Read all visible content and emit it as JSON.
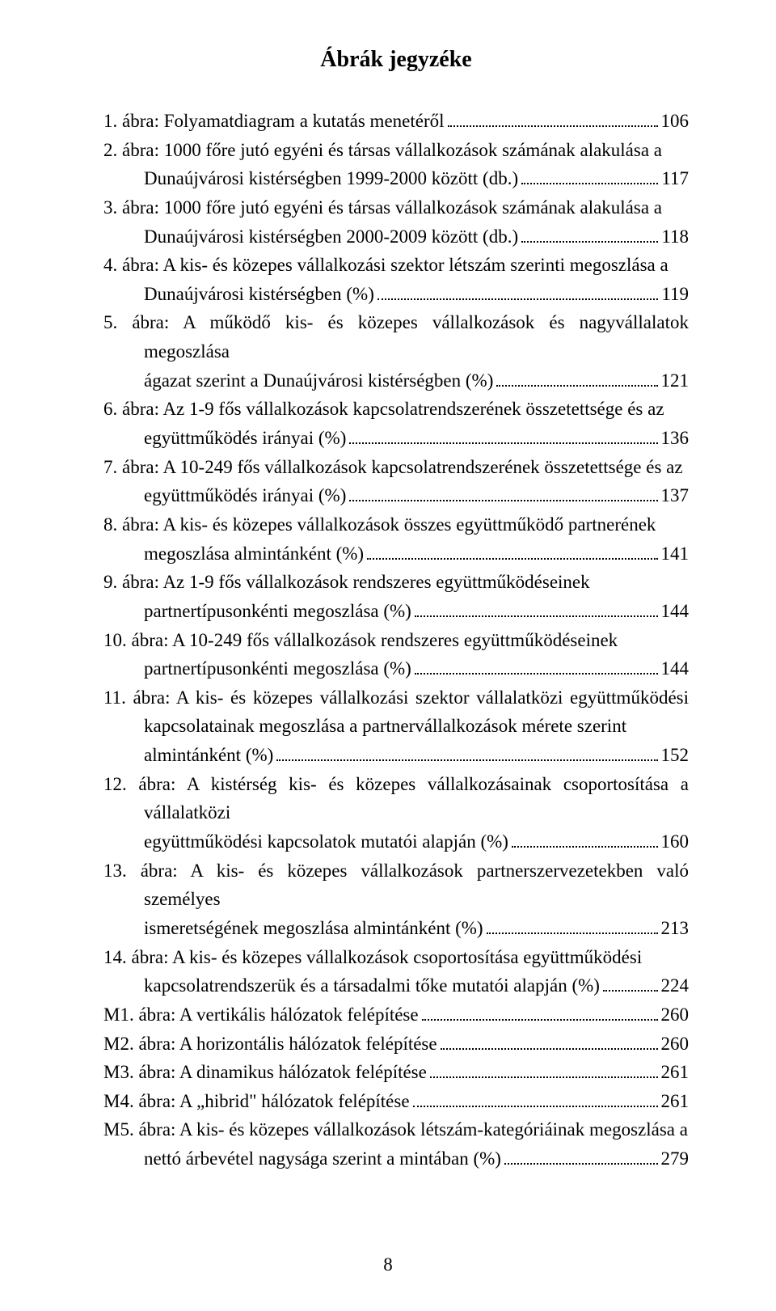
{
  "title": "Ábrák jegyzéke",
  "page_number": "8",
  "entries": [
    {
      "pre": "",
      "tail": "1. ábra: Folyamatdiagram a kutatás menetéről",
      "page": "106"
    },
    {
      "pre": "2. ábra: 1000 főre jutó egyéni és társas vállalkozások számának alakulása a",
      "tail": "Dunaújvárosi kistérségben 1999-2000 között (db.)",
      "page": "117"
    },
    {
      "pre": "3. ábra: 1000 főre jutó egyéni és társas vállalkozások számának alakulása a",
      "tail": "Dunaújvárosi kistérségben 2000-2009 között (db.)",
      "page": "118"
    },
    {
      "pre": "4. ábra: A kis- és közepes vállalkozási szektor létszám szerinti megoszlása a",
      "tail": "Dunaújvárosi kistérségben (%)",
      "page": "119"
    },
    {
      "pre": "5. ábra: A működő kis- és közepes vállalkozások és nagyvállalatok megoszlása",
      "tail": "ágazat szerint a Dunaújvárosi kistérségben (%)",
      "page": "121"
    },
    {
      "pre": "6. ábra: Az 1-9 fős vállalkozások kapcsolatrendszerének összetettsége és az",
      "tail": "együttműködés irányai (%)",
      "page": "136"
    },
    {
      "pre": "7. ábra: A 10-249 fős vállalkozások kapcsolatrendszerének összetettsége és az",
      "tail": "együttműködés irányai (%)",
      "page": "137"
    },
    {
      "pre": "8. ábra: A kis- és közepes vállalkozások összes együttműködő partnerének",
      "tail": "megoszlása almintánként (%)",
      "page": "141"
    },
    {
      "pre": "9. ábra: Az 1-9 fős vállalkozások rendszeres együttműködéseinek",
      "tail": "partnertípusonkénti megoszlása (%)",
      "page": "144"
    },
    {
      "pre": "10. ábra: A 10-249 fős vállalkozások rendszeres együttműködéseinek",
      "tail": "partnertípusonkénti megoszlása (%)",
      "page": "144"
    },
    {
      "pre": "11. ábra: A kis- és közepes vállalkozási szektor vállalatközi együttműködési kapcsolatainak megoszlása a partnervállalkozások mérete szerint",
      "tail": "almintánként (%)",
      "page": "152"
    },
    {
      "pre": "12. ábra: A kistérség kis- és közepes vállalkozásainak csoportosítása a vállalatközi",
      "tail": "együttműködési kapcsolatok mutatói alapján (%)",
      "page": "160"
    },
    {
      "pre": "13. ábra: A kis- és közepes vállalkozások partnerszervezetekben való személyes",
      "tail": "ismeretségének megoszlása almintánként (%)",
      "page": "213"
    },
    {
      "pre": "14. ábra: A kis- és közepes vállalkozások csoportosítása együttműködési",
      "tail": "kapcsolatrendszerük és a társadalmi tőke mutatói alapján (%)",
      "page": "224"
    },
    {
      "pre": "",
      "tail": "M1. ábra: A vertikális hálózatok felépítése",
      "page": "260"
    },
    {
      "pre": "",
      "tail": "M2. ábra: A horizontális hálózatok felépítése",
      "page": "260"
    },
    {
      "pre": "",
      "tail": "M3. ábra: A dinamikus hálózatok felépítése",
      "page": "261"
    },
    {
      "pre": "",
      "tail": "M4. ábra: A „hibrid\" hálózatok felépítése",
      "page": "261"
    },
    {
      "pre": "M5. ábra: A kis- és közepes vállalkozások létszám-kategóriáinak megoszlása a",
      "tail": "nettó árbevétel nagysága szerint a mintában (%)",
      "page": "279"
    }
  ]
}
